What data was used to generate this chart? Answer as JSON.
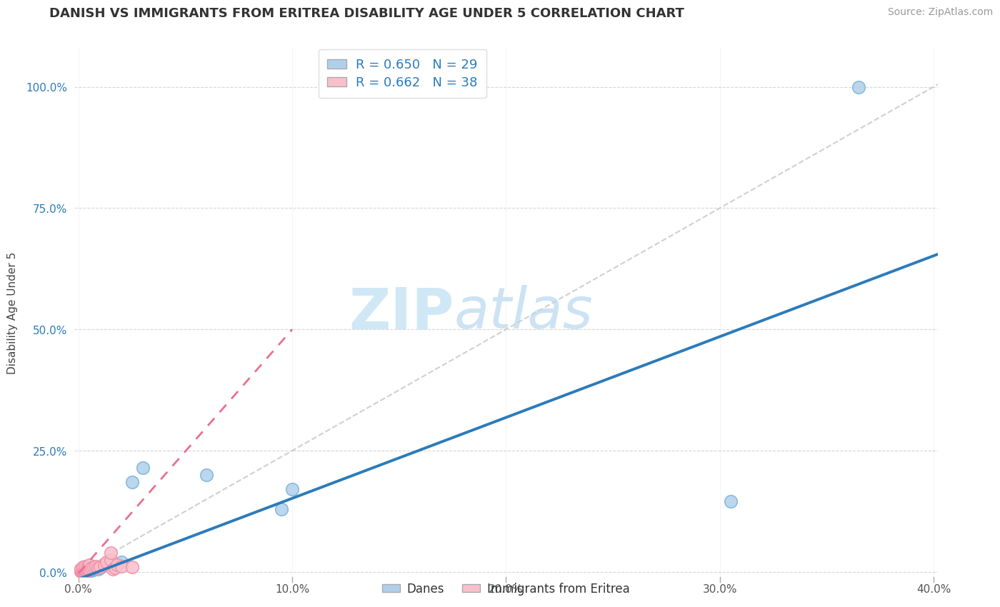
{
  "title": "DANISH VS IMMIGRANTS FROM ERITREA DISABILITY AGE UNDER 5 CORRELATION CHART",
  "source": "Source: ZipAtlas.com",
  "ylabel": "Disability Age Under 5",
  "legend_danes": "Danes",
  "legend_eritrea": "Immigrants from Eritrea",
  "r_danes": 0.65,
  "n_danes": 29,
  "r_eritrea": 0.662,
  "n_eritrea": 38,
  "xlim": [
    -0.002,
    0.402
  ],
  "ylim": [
    -0.01,
    1.08
  ],
  "xticks": [
    0.0,
    0.1,
    0.2,
    0.3,
    0.4
  ],
  "yticks": [
    0.0,
    0.25,
    0.5,
    0.75,
    1.0
  ],
  "ytick_labels": [
    "0.0%",
    "25.0%",
    "50.0%",
    "75.0%",
    "100.0%"
  ],
  "xtick_labels": [
    "0.0%",
    "10.0%",
    "20.0%",
    "30.0%",
    "40.0%"
  ],
  "background_color": "#ffffff",
  "grid_color": "#cccccc",
  "danes_color": "#afd0ea",
  "danes_edge_color": "#7ab3d9",
  "eritrea_color": "#f9c0cc",
  "eritrea_edge_color": "#f090a8",
  "danes_line_color": "#2b7bba",
  "eritrea_line_color": "#e87090",
  "ref_line_color": "#c8c8c8",
  "watermark_color": "#d0e8f5",
  "danes_x": [
    0.001,
    0.001,
    0.001,
    0.002,
    0.002,
    0.002,
    0.002,
    0.003,
    0.003,
    0.004,
    0.004,
    0.005,
    0.005,
    0.006,
    0.007,
    0.008,
    0.009,
    0.01,
    0.01,
    0.011,
    0.015,
    0.02,
    0.025,
    0.03,
    0.06,
    0.095,
    0.1,
    0.305,
    0.365
  ],
  "danes_y": [
    0.002,
    0.003,
    0.004,
    0.001,
    0.002,
    0.003,
    0.005,
    0.002,
    0.004,
    0.003,
    0.006,
    0.002,
    0.004,
    0.003,
    0.005,
    0.007,
    0.006,
    0.008,
    0.01,
    0.012,
    0.015,
    0.02,
    0.185,
    0.215,
    0.2,
    0.13,
    0.17,
    0.145,
    1.0
  ],
  "eritrea_x": [
    0.001,
    0.001,
    0.001,
    0.001,
    0.001,
    0.001,
    0.002,
    0.002,
    0.002,
    0.002,
    0.002,
    0.002,
    0.002,
    0.003,
    0.003,
    0.003,
    0.003,
    0.003,
    0.004,
    0.004,
    0.004,
    0.005,
    0.005,
    0.005,
    0.006,
    0.007,
    0.008,
    0.009,
    0.01,
    0.012,
    0.013,
    0.015,
    0.015,
    0.016,
    0.017,
    0.018,
    0.02,
    0.025
  ],
  "eritrea_y": [
    0.001,
    0.002,
    0.003,
    0.004,
    0.005,
    0.006,
    0.001,
    0.002,
    0.003,
    0.004,
    0.006,
    0.008,
    0.01,
    0.002,
    0.004,
    0.006,
    0.008,
    0.012,
    0.003,
    0.005,
    0.01,
    0.004,
    0.007,
    0.015,
    0.008,
    0.01,
    0.012,
    0.008,
    0.01,
    0.015,
    0.02,
    0.025,
    0.04,
    0.005,
    0.008,
    0.015,
    0.012,
    0.01
  ],
  "danes_line_x0": 0.0,
  "danes_line_y0": -0.015,
  "danes_line_x1": 0.402,
  "danes_line_y1": 0.655,
  "eritrea_line_x0": 0.0,
  "eritrea_line_y0": -0.003,
  "eritrea_line_x1": 0.1,
  "eritrea_line_y1": 0.5,
  "ref_line_x0": 0.0,
  "ref_line_y0": 0.0,
  "ref_line_x1": 0.402,
  "ref_line_y1": 1.005,
  "title_fontsize": 13,
  "label_fontsize": 11,
  "tick_fontsize": 11,
  "source_fontsize": 10
}
